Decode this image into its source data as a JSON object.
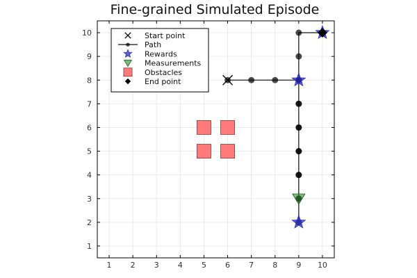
{
  "chart_data": {
    "type": "scatter",
    "title": "Fine-grained Simulated Episode",
    "xlabel": "",
    "ylabel": "",
    "xlim": [
      0.5,
      10.5
    ],
    "ylim": [
      0.5,
      10.5
    ],
    "xticks": [
      1,
      2,
      3,
      4,
      5,
      6,
      7,
      8,
      9,
      10
    ],
    "yticks": [
      1,
      2,
      3,
      4,
      5,
      6,
      7,
      8,
      9,
      10
    ],
    "grid": true,
    "legend_position": "top-left",
    "series": [
      {
        "name": "Start point",
        "marker": "x",
        "color": "#000000",
        "points": [
          [
            6,
            8
          ]
        ]
      },
      {
        "name": "Path",
        "marker": "circle-line",
        "color": "#000000",
        "points": [
          [
            6,
            8
          ],
          [
            7,
            8
          ],
          [
            8,
            8
          ],
          [
            9,
            8
          ],
          [
            9,
            7
          ],
          [
            9,
            6
          ],
          [
            9,
            5
          ],
          [
            9,
            4
          ],
          [
            9,
            3
          ],
          [
            9,
            2
          ],
          [
            9,
            3
          ],
          [
            9,
            4
          ],
          [
            9,
            5
          ],
          [
            9,
            6
          ],
          [
            9,
            7
          ],
          [
            9,
            8
          ],
          [
            9,
            9
          ],
          [
            9,
            10
          ],
          [
            10,
            10
          ]
        ]
      },
      {
        "name": "Rewards",
        "marker": "star",
        "color": "#2b2bc8",
        "points": [
          [
            9,
            8
          ],
          [
            9,
            2
          ],
          [
            10,
            10
          ]
        ]
      },
      {
        "name": "Measurements",
        "marker": "triangle-down",
        "color": "#2e8b2e",
        "points": [
          [
            9,
            3
          ]
        ]
      },
      {
        "name": "Obstacles",
        "marker": "square",
        "color": "#ff6b6b",
        "points": [
          [
            5,
            5
          ],
          [
            5,
            6
          ],
          [
            6,
            5
          ],
          [
            6,
            6
          ]
        ]
      },
      {
        "name": "End point",
        "marker": "diamond",
        "color": "#000000",
        "points": [
          [
            10,
            10
          ]
        ]
      }
    ]
  }
}
